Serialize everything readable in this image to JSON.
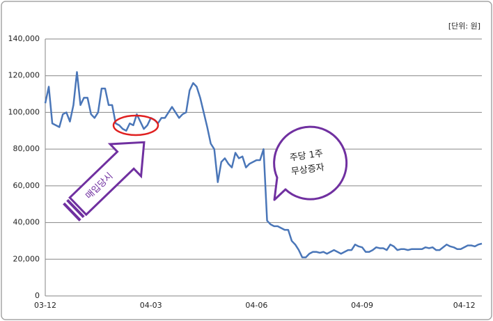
{
  "chart_data": {
    "type": "line",
    "unit": "[단위: 원]",
    "annotations": [
      {
        "text": "매입당시"
      },
      {
        "lines": [
          "주당 1주",
          "무상증자"
        ]
      }
    ],
    "categories": [
      "03-12",
      null,
      null,
      null,
      null,
      null,
      null,
      null,
      null,
      null,
      null,
      null,
      null,
      null,
      null,
      null,
      null,
      null,
      null,
      null,
      null,
      null,
      null,
      null,
      null,
      null,
      null,
      null,
      null,
      null,
      "04-03",
      null,
      null,
      null,
      null,
      null,
      null,
      null,
      null,
      null,
      null,
      null,
      null,
      null,
      null,
      null,
      null,
      null,
      null,
      null,
      null,
      null,
      null,
      null,
      null,
      null,
      null,
      null,
      null,
      null,
      "04-06",
      null,
      null,
      null,
      null,
      null,
      null,
      null,
      null,
      null,
      null,
      null,
      null,
      null,
      null,
      null,
      null,
      null,
      null,
      null,
      null,
      null,
      null,
      null,
      null,
      null,
      null,
      null,
      null,
      null,
      "04-09",
      null,
      null,
      null,
      null,
      null,
      null,
      null,
      null,
      null,
      null,
      null,
      null,
      null,
      null,
      null,
      null,
      null,
      null,
      null,
      null,
      null,
      null,
      null,
      null,
      null,
      null,
      null,
      null,
      "04-12",
      null,
      null,
      null,
      null,
      null
    ],
    "series": [
      {
        "color": "#4a76b8",
        "values": [
          105000,
          114000,
          94000,
          93000,
          92000,
          99000,
          100000,
          95000,
          104000,
          122000,
          104000,
          108000,
          108000,
          99000,
          97000,
          100000,
          113000,
          113000,
          104000,
          104000,
          94000,
          93000,
          91000,
          90000,
          94000,
          93000,
          99000,
          95000,
          91000,
          93000,
          97000,
          96000,
          94000,
          97000,
          97000,
          100000,
          103000,
          100000,
          97000,
          99000,
          100000,
          112000,
          116000,
          114000,
          108000,
          100000,
          92000,
          83000,
          80000,
          62000,
          73000,
          75000,
          72000,
          70000,
          78000,
          75000,
          76000,
          70000,
          72000,
          73000,
          74000,
          74000,
          80000,
          41000,
          39000,
          38000,
          38000,
          37000,
          36000,
          36000,
          30000,
          28000,
          25000,
          21000,
          21000,
          23000,
          24000,
          24000,
          23500,
          24000,
          23000,
          24000,
          25000,
          24000,
          23000,
          24000,
          25000,
          25000,
          28000,
          27000,
          26500,
          24000,
          24000,
          25000,
          26500,
          26000,
          26000,
          25000,
          28000,
          27000,
          25000,
          25500,
          25500,
          25000,
          25500,
          25500,
          25500,
          25500,
          26500,
          26000,
          26500,
          25000,
          25000,
          26500,
          28000,
          27000,
          26500,
          25500,
          25500,
          26500,
          27500,
          27500,
          27000,
          28000,
          28500
        ]
      }
    ],
    "ylim": [
      0,
      140000
    ],
    "yticks": [
      0,
      {
        "value": 20000,
        "label": "20,000"
      },
      {
        "value": 40000,
        "label": "40,000"
      },
      {
        "value": 60000,
        "label": "60,000"
      },
      {
        "value": 80000,
        "label": "80,000"
      },
      {
        "value": 100000,
        "label": "100,000"
      },
      {
        "value": 120000,
        "label": "120,000"
      },
      {
        "value": 140000,
        "label": "140,000"
      }
    ],
    "grid": true
  }
}
